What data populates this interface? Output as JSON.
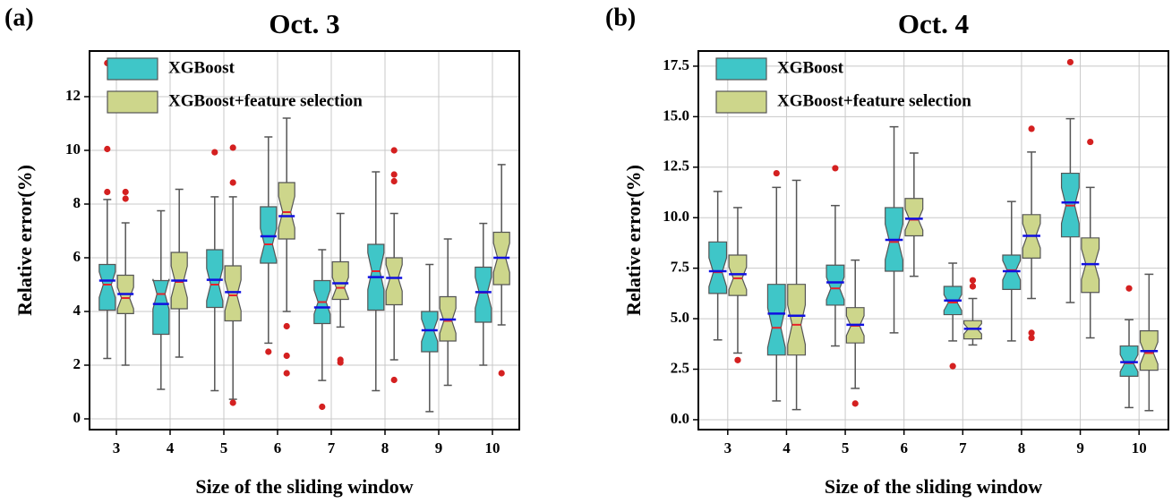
{
  "chart_data": [
    {
      "type": "box",
      "panel_label": "(a)",
      "title": "Oct. 3",
      "x_label": "Size of the sliding window",
      "y_label": "Relative error(%)",
      "categories": [
        "3",
        "4",
        "5",
        "6",
        "7",
        "8",
        "9",
        "10"
      ],
      "ylim": [
        -0.4,
        13.7
      ],
      "yticks": [
        0,
        2,
        4,
        6,
        8,
        10,
        12
      ],
      "grid": true,
      "legend": "upper left",
      "median_color": "#e8222a",
      "mean_color": "#1010e0",
      "outlier_color": "#d42020",
      "series": [
        {
          "name": "XGBoost",
          "color": "#3fc6c8",
          "boxes": [
            {
              "min": 2.25,
              "q1": 4.05,
              "median": 5.0,
              "q3": 5.75,
              "max": 8.17,
              "mean": 5.15,
              "outliers": [
                8.45,
                10.05,
                13.25
              ]
            },
            {
              "min": 1.1,
              "q1": 3.15,
              "median": 4.65,
              "q3": 5.15,
              "max": 7.75,
              "mean": 4.28,
              "outliers": []
            },
            {
              "min": 1.05,
              "q1": 4.15,
              "median": 5.0,
              "q3": 6.3,
              "max": 8.27,
              "mean": 5.18,
              "outliers": [
                9.93
              ]
            },
            {
              "min": 2.82,
              "q1": 5.8,
              "median": 6.5,
              "q3": 7.9,
              "max": 10.5,
              "mean": 6.8,
              "outliers": [
                2.5
              ]
            },
            {
              "min": 1.43,
              "q1": 3.55,
              "median": 4.35,
              "q3": 5.15,
              "max": 6.3,
              "mean": 4.15,
              "outliers": [
                0.45
              ]
            },
            {
              "min": 1.05,
              "q1": 4.05,
              "median": 5.5,
              "q3": 6.5,
              "max": 9.2,
              "mean": 5.28,
              "outliers": []
            },
            {
              "min": 0.27,
              "q1": 2.5,
              "median": 3.3,
              "q3": 4.0,
              "max": 5.75,
              "mean": 3.3,
              "outliers": []
            },
            {
              "min": 2.0,
              "q1": 3.6,
              "median": 4.7,
              "q3": 5.65,
              "max": 7.28,
              "mean": 4.72,
              "outliers": []
            }
          ]
        },
        {
          "name": "XGBoost+feature selection",
          "color": "#cdd68b",
          "boxes": [
            {
              "min": 2.0,
              "q1": 3.92,
              "median": 4.5,
              "q3": 5.35,
              "max": 7.3,
              "mean": 4.65,
              "outliers": [
                8.2,
                8.45
              ]
            },
            {
              "min": 2.3,
              "q1": 4.1,
              "median": 5.1,
              "q3": 6.2,
              "max": 8.55,
              "mean": 5.15,
              "outliers": []
            },
            {
              "min": 0.73,
              "q1": 3.65,
              "median": 4.6,
              "q3": 5.7,
              "max": 8.27,
              "mean": 4.72,
              "outliers": [
                10.1,
                8.8,
                0.6
              ]
            },
            {
              "min": 4.0,
              "q1": 6.7,
              "median": 7.7,
              "q3": 8.8,
              "max": 11.2,
              "mean": 7.55,
              "outliers": [
                3.45,
                2.35,
                1.7
              ]
            },
            {
              "min": 3.42,
              "q1": 4.45,
              "median": 4.88,
              "q3": 5.85,
              "max": 7.65,
              "mean": 5.05,
              "outliers": [
                2.2,
                2.1
              ]
            },
            {
              "min": 2.2,
              "q1": 4.25,
              "median": 5.25,
              "q3": 6.0,
              "max": 7.65,
              "mean": 5.25,
              "outliers": [
                10.0,
                9.1,
                8.85,
                1.45
              ]
            },
            {
              "min": 1.25,
              "q1": 2.9,
              "median": 3.65,
              "q3": 4.55,
              "max": 6.7,
              "mean": 3.7,
              "outliers": []
            },
            {
              "min": 3.5,
              "q1": 5.0,
              "median": 6.0,
              "q3": 6.95,
              "max": 9.47,
              "mean": 6.0,
              "outliers": [
                1.7
              ]
            }
          ]
        }
      ]
    },
    {
      "type": "box",
      "panel_label": "(b)",
      "title": "Oct. 4",
      "x_label": "Size of the sliding window",
      "y_label": "Relative error(%)",
      "categories": [
        "3",
        "4",
        "5",
        "6",
        "7",
        "8",
        "9",
        "10"
      ],
      "ylim": [
        -0.49,
        18.25
      ],
      "yticks": [
        {
          "value": 0,
          "label": "0.0"
        },
        2.5,
        {
          "value": 5,
          "label": "5.0"
        },
        7.5,
        {
          "value": 10,
          "label": "10.0"
        },
        12.5,
        {
          "value": 15,
          "label": "15.0"
        },
        17.5
      ],
      "grid": true,
      "legend": "upper left",
      "median_color": "#e8222a",
      "mean_color": "#1010e0",
      "outlier_color": "#d42020",
      "series": [
        {
          "name": "XGBoost",
          "color": "#3fc6c8",
          "boxes": [
            {
              "min": 3.95,
              "q1": 6.25,
              "median": 7.3,
              "q3": 8.8,
              "max": 11.3,
              "mean": 7.35,
              "outliers": []
            },
            {
              "min": 0.93,
              "q1": 3.2,
              "median": 4.55,
              "q3": 6.7,
              "max": 11.5,
              "mean": 5.25,
              "outliers": [
                12.2
              ]
            },
            {
              "min": 3.65,
              "q1": 5.67,
              "median": 6.5,
              "q3": 7.65,
              "max": 10.6,
              "mean": 6.8,
              "outliers": [
                12.45
              ]
            },
            {
              "min": 4.3,
              "q1": 7.35,
              "median": 8.8,
              "q3": 10.5,
              "max": 14.5,
              "mean": 8.9,
              "outliers": []
            },
            {
              "min": 3.9,
              "q1": 5.2,
              "median": 5.8,
              "q3": 6.6,
              "max": 7.75,
              "mean": 5.9,
              "outliers": [
                2.65
              ]
            },
            {
              "min": 3.9,
              "q1": 6.45,
              "median": 7.4,
              "q3": 8.15,
              "max": 10.8,
              "mean": 7.35,
              "outliers": []
            },
            {
              "min": 5.8,
              "q1": 9.05,
              "median": 10.6,
              "q3": 12.2,
              "max": 14.9,
              "mean": 10.75,
              "outliers": [
                17.7
              ]
            },
            {
              "min": 0.6,
              "q1": 2.15,
              "median": 2.8,
              "q3": 3.65,
              "max": 4.95,
              "mean": 2.85,
              "outliers": [
                6.5
              ]
            }
          ]
        },
        {
          "name": "XGBoost+feature selection",
          "color": "#cdd68b",
          "boxes": [
            {
              "min": 3.3,
              "q1": 6.15,
              "median": 7.0,
              "q3": 8.15,
              "max": 10.5,
              "mean": 7.2,
              "outliers": [
                2.95
              ]
            },
            {
              "min": 0.5,
              "q1": 3.2,
              "median": 4.7,
              "q3": 6.7,
              "max": 11.85,
              "mean": 5.15,
              "outliers": []
            },
            {
              "min": 1.55,
              "q1": 3.8,
              "median": 4.65,
              "q3": 5.55,
              "max": 7.9,
              "mean": 4.7,
              "outliers": [
                0.8
              ]
            },
            {
              "min": 7.1,
              "q1": 9.1,
              "median": 9.9,
              "q3": 10.95,
              "max": 13.2,
              "mean": 9.95,
              "outliers": []
            },
            {
              "min": 3.7,
              "q1": 4.0,
              "median": 4.5,
              "q3": 4.9,
              "max": 6.0,
              "mean": 4.5,
              "outliers": [
                6.9,
                6.6
              ]
            },
            {
              "min": 6.0,
              "q1": 8.0,
              "median": 9.1,
              "q3": 10.15,
              "max": 13.25,
              "mean": 9.1,
              "outliers": [
                14.4,
                4.3,
                4.05
              ]
            },
            {
              "min": 4.05,
              "q1": 6.3,
              "median": 7.7,
              "q3": 9.0,
              "max": 11.5,
              "mean": 7.7,
              "outliers": [
                13.75
              ]
            },
            {
              "min": 0.45,
              "q1": 2.45,
              "median": 3.3,
              "q3": 4.4,
              "max": 7.2,
              "mean": 3.4,
              "outliers": []
            }
          ]
        }
      ]
    }
  ]
}
